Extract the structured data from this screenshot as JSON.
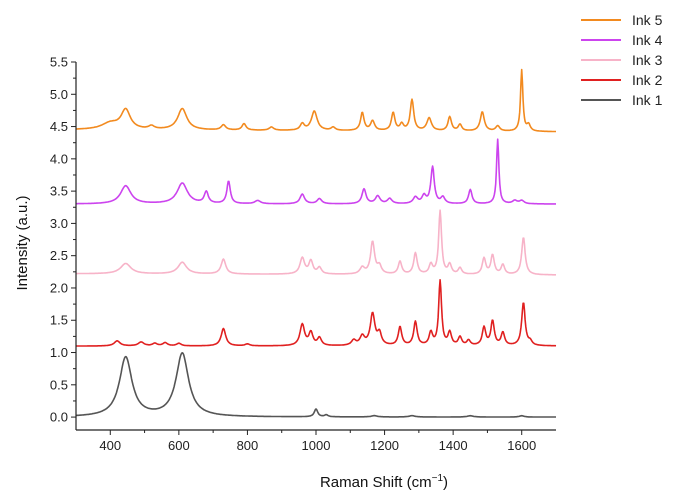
{
  "chart_data": {
    "type": "line",
    "title": "",
    "xlabel_main": "Raman Shift (cm",
    "xlabel_sup": "−1",
    "xlabel_close": ")",
    "ylabel": "Intensity (a.u.)",
    "xlim": [
      300,
      1700
    ],
    "ylim": [
      -0.2,
      5.5
    ],
    "x_ticks": [
      400,
      600,
      800,
      1000,
      1200,
      1400,
      1600
    ],
    "x_tick_labels": [
      "400",
      "600",
      "800",
      "1000",
      "1200",
      "1400",
      "1600"
    ],
    "y_ticks": [
      0.0,
      0.5,
      1.0,
      1.5,
      2.0,
      2.5,
      3.0,
      3.5,
      4.0,
      4.5,
      5.0,
      5.5
    ],
    "y_tick_labels": [
      "0.0",
      "0.5",
      "1.0",
      "1.5",
      "2.0",
      "2.5",
      "3.0",
      "3.5",
      "4.0",
      "4.5",
      "5.0",
      "5.5"
    ],
    "grid": false,
    "legend_position": "top-right",
    "legend_order": [
      "Ink 5",
      "Ink 4",
      "Ink 3",
      "Ink 2",
      "Ink 1"
    ],
    "series": [
      {
        "name": "Ink 1",
        "color": "#555555",
        "baseline_start": 0.0,
        "baseline_end": 0.0,
        "peaks": [
          [
            445,
            0.92,
            22
          ],
          [
            610,
            0.98,
            22
          ],
          [
            1000,
            0.12,
            6
          ],
          [
            1030,
            0.03,
            6
          ],
          [
            1170,
            0.02,
            10
          ],
          [
            1280,
            0.02,
            10
          ],
          [
            1450,
            0.02,
            10
          ],
          [
            1600,
            0.02,
            8
          ]
        ]
      },
      {
        "name": "Ink 2",
        "color": "#e02020",
        "baseline_start": 1.1,
        "baseline_end": 1.1,
        "peaks": [
          [
            420,
            0.08,
            10
          ],
          [
            490,
            0.06,
            10
          ],
          [
            530,
            0.04,
            8
          ],
          [
            560,
            0.05,
            8
          ],
          [
            600,
            0.04,
            8
          ],
          [
            730,
            0.27,
            8
          ],
          [
            800,
            0.03,
            8
          ],
          [
            960,
            0.33,
            8
          ],
          [
            985,
            0.2,
            7
          ],
          [
            1010,
            0.12,
            7
          ],
          [
            1110,
            0.08,
            8
          ],
          [
            1135,
            0.14,
            8
          ],
          [
            1165,
            0.49,
            8
          ],
          [
            1185,
            0.18,
            7
          ],
          [
            1245,
            0.29,
            6
          ],
          [
            1290,
            0.37,
            6
          ],
          [
            1335,
            0.2,
            6
          ],
          [
            1362,
            1.0,
            5
          ],
          [
            1390,
            0.2,
            6
          ],
          [
            1420,
            0.13,
            6
          ],
          [
            1445,
            0.08,
            6
          ],
          [
            1490,
            0.28,
            6
          ],
          [
            1515,
            0.38,
            6
          ],
          [
            1545,
            0.2,
            6
          ],
          [
            1605,
            0.67,
            6
          ],
          [
            1625,
            0.06,
            6
          ]
        ]
      },
      {
        "name": "Ink 3",
        "color": "#f7b3c8",
        "baseline_start": 2.22,
        "baseline_end": 2.2,
        "peaks": [
          [
            445,
            0.16,
            18
          ],
          [
            610,
            0.18,
            15
          ],
          [
            730,
            0.23,
            8
          ],
          [
            960,
            0.25,
            8
          ],
          [
            985,
            0.2,
            7
          ],
          [
            1010,
            0.1,
            7
          ],
          [
            1135,
            0.1,
            8
          ],
          [
            1165,
            0.5,
            7
          ],
          [
            1185,
            0.12,
            7
          ],
          [
            1245,
            0.2,
            6
          ],
          [
            1290,
            0.33,
            6
          ],
          [
            1335,
            0.15,
            6
          ],
          [
            1362,
            0.98,
            5
          ],
          [
            1390,
            0.15,
            6
          ],
          [
            1420,
            0.1,
            6
          ],
          [
            1490,
            0.25,
            6
          ],
          [
            1515,
            0.3,
            6
          ],
          [
            1545,
            0.15,
            6
          ],
          [
            1605,
            0.58,
            6
          ]
        ]
      },
      {
        "name": "Ink 4",
        "color": "#cc44ee",
        "baseline_start": 3.3,
        "baseline_end": 3.3,
        "peaks": [
          [
            445,
            0.28,
            18
          ],
          [
            610,
            0.32,
            18
          ],
          [
            680,
            0.18,
            7
          ],
          [
            745,
            0.35,
            6
          ],
          [
            830,
            0.05,
            10
          ],
          [
            960,
            0.15,
            8
          ],
          [
            1010,
            0.08,
            8
          ],
          [
            1140,
            0.23,
            7
          ],
          [
            1180,
            0.12,
            8
          ],
          [
            1215,
            0.08,
            8
          ],
          [
            1290,
            0.1,
            8
          ],
          [
            1315,
            0.12,
            7
          ],
          [
            1340,
            0.57,
            6
          ],
          [
            1370,
            0.1,
            7
          ],
          [
            1450,
            0.22,
            6
          ],
          [
            1530,
            1.0,
            4
          ],
          [
            1580,
            0.05,
            8
          ],
          [
            1600,
            0.05,
            8
          ]
        ]
      },
      {
        "name": "Ink 5",
        "color": "#f28a1f",
        "baseline_start": 4.45,
        "baseline_end": 4.42,
        "peaks": [
          [
            400,
            0.1,
            30
          ],
          [
            445,
            0.3,
            16
          ],
          [
            520,
            0.05,
            10
          ],
          [
            610,
            0.33,
            16
          ],
          [
            730,
            0.08,
            8
          ],
          [
            790,
            0.1,
            7
          ],
          [
            870,
            0.05,
            8
          ],
          [
            960,
            0.1,
            7
          ],
          [
            995,
            0.3,
            10
          ],
          [
            1050,
            0.05,
            7
          ],
          [
            1135,
            0.28,
            6
          ],
          [
            1165,
            0.15,
            7
          ],
          [
            1225,
            0.28,
            6
          ],
          [
            1250,
            0.1,
            6
          ],
          [
            1280,
            0.48,
            6
          ],
          [
            1330,
            0.2,
            8
          ],
          [
            1390,
            0.22,
            6
          ],
          [
            1420,
            0.1,
            6
          ],
          [
            1485,
            0.3,
            7
          ],
          [
            1530,
            0.08,
            7
          ],
          [
            1600,
            0.95,
            4
          ],
          [
            1620,
            0.1,
            6
          ]
        ]
      }
    ]
  }
}
